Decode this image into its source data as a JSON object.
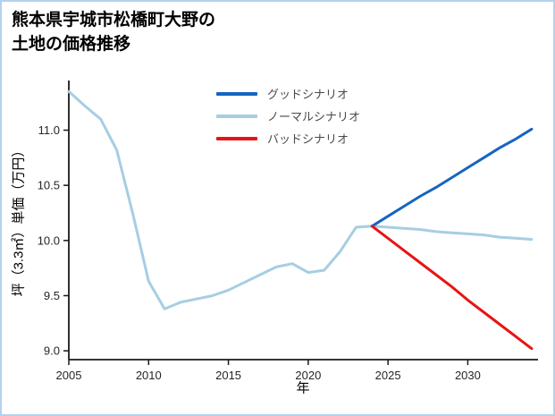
{
  "page": {
    "border_color": "#b4d2ec",
    "background": "#ffffff"
  },
  "title": {
    "line1": "熊本県宇城市松橋町大野の",
    "line2": "土地の価格推移"
  },
  "axis": {
    "color": "#1a1a1a"
  },
  "chart_data": {
    "type": "line",
    "title": "熊本県宇城市松橋町大野の土地の価格推移",
    "xlabel": "年",
    "ylabel": "坪（3.3㎡）単価（万円）",
    "x_ticks": [
      2005,
      2010,
      2015,
      2020,
      2025,
      2030
    ],
    "y_ticks": [
      9.0,
      9.5,
      10.0,
      10.5,
      11.0
    ],
    "x_range": [
      2005,
      2034.4
    ],
    "y_range": [
      8.92,
      11.45
    ],
    "grid": false,
    "legend_position": "top-center-inside",
    "series": [
      {
        "name": "グッドシナリオ",
        "color": "#1565c0",
        "x": [
          2024,
          2025,
          2026,
          2027,
          2028,
          2029,
          2030,
          2031,
          2032,
          2033,
          2034
        ],
        "y": [
          10.13,
          10.22,
          10.31,
          10.4,
          10.48,
          10.57,
          10.66,
          10.75,
          10.84,
          10.92,
          11.01
        ]
      },
      {
        "name": "ノーマルシナリオ",
        "color": "#a6cee3",
        "x": [
          2005,
          2006,
          2007,
          2008,
          2009,
          2010,
          2011,
          2012,
          2013,
          2014,
          2015,
          2016,
          2017,
          2018,
          2019,
          2020,
          2021,
          2022,
          2023,
          2024,
          2025,
          2026,
          2027,
          2028,
          2029,
          2030,
          2031,
          2032,
          2033,
          2034
        ],
        "y": [
          11.35,
          11.22,
          11.1,
          10.82,
          10.25,
          9.63,
          9.38,
          9.44,
          9.47,
          9.5,
          9.55,
          9.62,
          9.69,
          9.76,
          9.79,
          9.71,
          9.73,
          9.9,
          10.12,
          10.13,
          10.12,
          10.11,
          10.1,
          10.08,
          10.07,
          10.06,
          10.05,
          10.03,
          10.02,
          10.01
        ]
      },
      {
        "name": "バッドシナリオ",
        "color": "#e81414",
        "x": [
          2024,
          2025,
          2026,
          2027,
          2028,
          2029,
          2030,
          2031,
          2032,
          2033,
          2034
        ],
        "y": [
          10.13,
          10.02,
          9.91,
          9.8,
          9.69,
          9.58,
          9.46,
          9.35,
          9.24,
          9.13,
          9.02
        ]
      }
    ]
  }
}
